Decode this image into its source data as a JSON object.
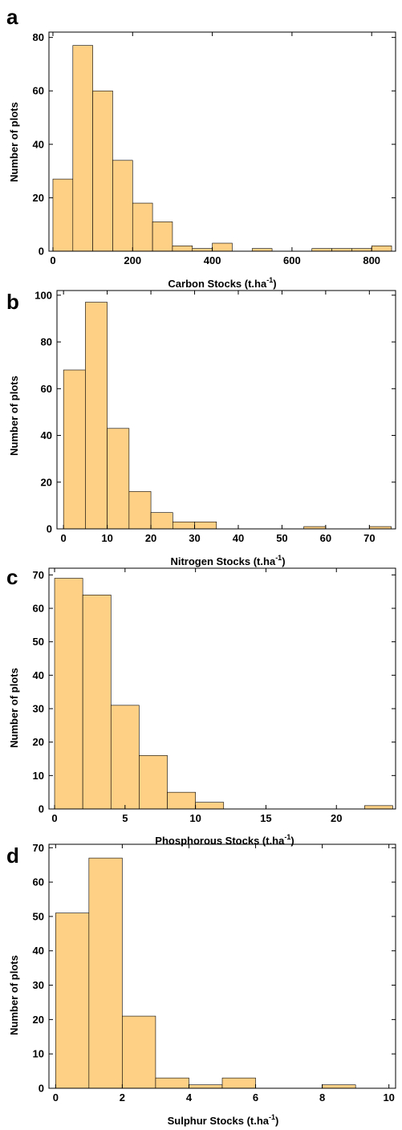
{
  "colors": {
    "bar_fill": "#fdd086",
    "bar_stroke": "#000000",
    "axis": "#000000"
  },
  "chart_data": [
    {
      "type": "bar",
      "panel_label": "a",
      "title": "",
      "xlabel": "Carbon Stocks (t.ha",
      "xlabel_sup": "-1",
      "xlabel_close": ")",
      "ylabel": "Number of plots",
      "xlim": [
        -10,
        860
      ],
      "ylim": [
        0,
        82
      ],
      "x_ticks": [
        0,
        200,
        400,
        600,
        800
      ],
      "y_ticks": [
        0,
        20,
        40,
        60,
        80
      ],
      "bin_width": 50,
      "bins": [
        {
          "x0": 0,
          "x1": 50,
          "count": 27
        },
        {
          "x0": 50,
          "x1": 100,
          "count": 77
        },
        {
          "x0": 100,
          "x1": 150,
          "count": 60
        },
        {
          "x0": 150,
          "x1": 200,
          "count": 34
        },
        {
          "x0": 200,
          "x1": 250,
          "count": 18
        },
        {
          "x0": 250,
          "x1": 300,
          "count": 11
        },
        {
          "x0": 300,
          "x1": 350,
          "count": 2
        },
        {
          "x0": 350,
          "x1": 400,
          "count": 1
        },
        {
          "x0": 400,
          "x1": 450,
          "count": 3
        },
        {
          "x0": 500,
          "x1": 550,
          "count": 1
        },
        {
          "x0": 650,
          "x1": 700,
          "count": 1
        },
        {
          "x0": 700,
          "x1": 750,
          "count": 1
        },
        {
          "x0": 750,
          "x1": 800,
          "count": 1
        },
        {
          "x0": 800,
          "x1": 850,
          "count": 2
        }
      ]
    },
    {
      "type": "bar",
      "panel_label": "b",
      "title": "",
      "xlabel": "Nitrogen Stocks (t.ha",
      "xlabel_sup": "-1",
      "xlabel_close": ")",
      "ylabel": "Number of plots",
      "xlim": [
        -1.5,
        76
      ],
      "ylim": [
        0,
        102
      ],
      "x_ticks": [
        0,
        10,
        20,
        30,
        40,
        50,
        60,
        70
      ],
      "y_ticks": [
        0,
        20,
        40,
        60,
        80,
        100
      ],
      "bin_width": 5,
      "bins": [
        {
          "x0": 0,
          "x1": 5,
          "count": 68
        },
        {
          "x0": 5,
          "x1": 10,
          "count": 97
        },
        {
          "x0": 10,
          "x1": 15,
          "count": 43
        },
        {
          "x0": 15,
          "x1": 20,
          "count": 16
        },
        {
          "x0": 20,
          "x1": 25,
          "count": 7
        },
        {
          "x0": 25,
          "x1": 30,
          "count": 3
        },
        {
          "x0": 30,
          "x1": 35,
          "count": 3
        },
        {
          "x0": 55,
          "x1": 60,
          "count": 1
        },
        {
          "x0": 70,
          "x1": 75,
          "count": 1
        }
      ]
    },
    {
      "type": "bar",
      "panel_label": "c",
      "title": "",
      "xlabel": "Phosphorous Stocks (t.ha",
      "xlabel_sup": "-1",
      "xlabel_close": ")",
      "ylabel": "Number of plots",
      "xlim": [
        -0.4,
        24.2
      ],
      "ylim": [
        0,
        72
      ],
      "x_ticks": [
        0,
        5,
        10,
        15,
        20
      ],
      "y_ticks": [
        0,
        10,
        20,
        30,
        40,
        50,
        60,
        70
      ],
      "bin_width": 2,
      "bins": [
        {
          "x0": 0,
          "x1": 2,
          "count": 69
        },
        {
          "x0": 2,
          "x1": 4,
          "count": 64
        },
        {
          "x0": 4,
          "x1": 6,
          "count": 31
        },
        {
          "x0": 6,
          "x1": 8,
          "count": 16
        },
        {
          "x0": 8,
          "x1": 10,
          "count": 5
        },
        {
          "x0": 10,
          "x1": 12,
          "count": 2
        },
        {
          "x0": 22,
          "x1": 24,
          "count": 1
        }
      ]
    },
    {
      "type": "bar",
      "panel_label": "d",
      "title": "",
      "xlabel": "Sulphur Stocks (t.ha",
      "xlabel_sup": "-1",
      "xlabel_close": ")",
      "ylabel": "Number of plots",
      "xlim": [
        -0.2,
        10.2
      ],
      "ylim": [
        0,
        71
      ],
      "x_ticks": [
        0,
        2,
        4,
        6,
        8,
        10
      ],
      "y_ticks": [
        0,
        10,
        20,
        30,
        40,
        50,
        60,
        70
      ],
      "bin_width": 1,
      "bins": [
        {
          "x0": 0,
          "x1": 1,
          "count": 51
        },
        {
          "x0": 1,
          "x1": 2,
          "count": 67
        },
        {
          "x0": 2,
          "x1": 3,
          "count": 21
        },
        {
          "x0": 3,
          "x1": 4,
          "count": 3
        },
        {
          "x0": 4,
          "x1": 5,
          "count": 1
        },
        {
          "x0": 5,
          "x1": 6,
          "count": 3
        },
        {
          "x0": 8,
          "x1": 9,
          "count": 1
        }
      ]
    }
  ]
}
